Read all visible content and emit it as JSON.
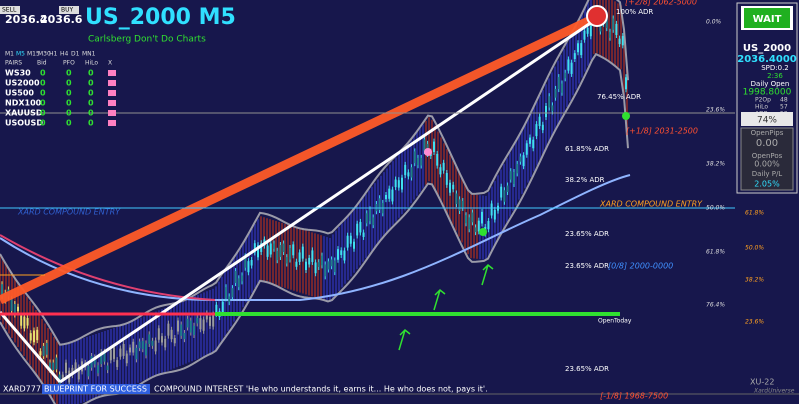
{
  "header": {
    "title": "US_2000 M5",
    "subtitle": "Carlsberg Don't Do Charts"
  },
  "trade": {
    "sell": "SELL",
    "buy": "BUY",
    "bid": "2036.4",
    "ask": "2036.6"
  },
  "pairs_table": {
    "timeframes": [
      "M1",
      "M5",
      "M15",
      "M30",
      "H1",
      "H4",
      "D1",
      "MN1"
    ],
    "columns": [
      "PAIRS",
      "Bid",
      "PFO",
      "HiLo",
      "X"
    ],
    "rows": [
      [
        "WS30",
        "0",
        "0",
        "0"
      ],
      [
        "US2000",
        "0",
        "0",
        "0"
      ],
      [
        "US500",
        "0",
        "0",
        "0"
      ],
      [
        "NDX100",
        "0",
        "0",
        "0"
      ],
      [
        "XAUUSD",
        "0",
        "0",
        "0"
      ],
      [
        "USOUSD",
        "0",
        "0",
        "0"
      ]
    ]
  },
  "info_panel": {
    "signal": "WAIT",
    "symbol": "US_2000",
    "price": "2036.4000",
    "spread": "SPD:0.2",
    "timer": "2:36",
    "daily_open_label": "Daily Open",
    "daily_open": "1998.8000",
    "stats": [
      [
        "P2Op",
        "48"
      ],
      [
        "HiLo",
        "57"
      ],
      [
        "ADR",
        "52"
      ]
    ],
    "percent": "74%",
    "open_pips_label": "OpenPips",
    "open_pips": "0.00",
    "open_pos_label": "OpenPos",
    "open_pos": "0.00%",
    "daily_pl_label": "Daily P/L",
    "daily_pl": "2.05%"
  },
  "chart_labels": {
    "adr": [
      "100% ADR",
      "76.45% ADR",
      "61.85% ADR",
      "38.2% ADR",
      "23.65% ADR",
      "23.65% ADR"
    ],
    "murrey": [
      "[+2/8] 2062-5000",
      "[+1/8] 2031-2500",
      "[0/8] 2000-0000",
      "[-1/8] 1968-7500"
    ],
    "entry": [
      "XARD COMPOUND ENTRY",
      "XARD COMPOUND ENTRY"
    ],
    "open_today": "OpenToday",
    "fib_white": [
      "0.0%",
      "23.6%",
      "38.2%",
      "50.0%",
      "61.8%",
      "76.4%"
    ],
    "fib_orange": [
      "61.8%",
      "50.0%",
      "38.2%",
      "23.6%"
    ]
  },
  "footer": {
    "brand": "XARD777",
    "slogan": "BLUEPRINT FOR SUCCESS",
    "quote": "COMPOUND INTEREST  'He who understands it, earns it... He who does not, pays it'.",
    "version": "XU-22",
    "site": "XardUniverse"
  }
}
